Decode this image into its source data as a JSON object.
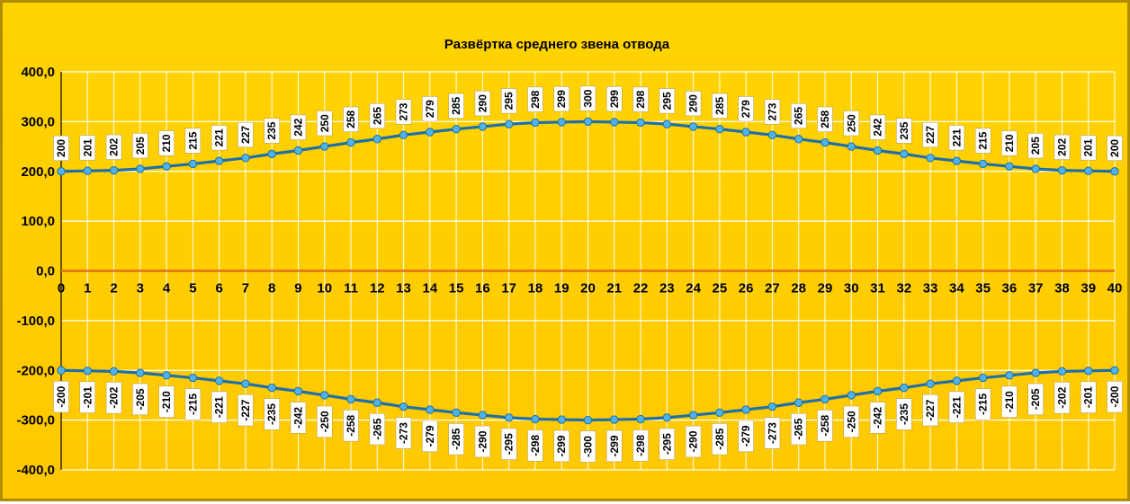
{
  "chart_data": {
    "type": "line",
    "title": "Развёртка среднего звена отвода",
    "xlabel": "",
    "ylabel": "",
    "x": [
      0,
      1,
      2,
      3,
      4,
      5,
      6,
      7,
      8,
      9,
      10,
      11,
      12,
      13,
      14,
      15,
      16,
      17,
      18,
      19,
      20,
      21,
      22,
      23,
      24,
      25,
      26,
      27,
      28,
      29,
      30,
      31,
      32,
      33,
      34,
      35,
      36,
      37,
      38,
      39,
      40
    ],
    "x_tick_labels": [
      "0",
      "1",
      "2",
      "3",
      "4",
      "5",
      "6",
      "7",
      "8",
      "9",
      "10",
      "11",
      "12",
      "13",
      "14",
      "15",
      "16",
      "17",
      "18",
      "19",
      "20",
      "21",
      "22",
      "23",
      "24",
      "25",
      "26",
      "27",
      "28",
      "29",
      "30",
      "31",
      "32",
      "33",
      "34",
      "35",
      "36",
      "37",
      "38",
      "39",
      "40"
    ],
    "ylim": [
      -400,
      400
    ],
    "y_ticks": [
      -400,
      -300,
      -200,
      -100,
      0,
      100,
      200,
      300,
      400
    ],
    "y_tick_labels": [
      "-400,0",
      "-300,0",
      "-200,0",
      "-100,0",
      "0,0",
      "100,0",
      "200,0",
      "300,0",
      "400,0"
    ],
    "grid": true,
    "legend": "none",
    "colors": {
      "series": "#1f6fa8",
      "marker": "#4fb3e8",
      "zero_line": "#e0701a",
      "grid": "#ffffff",
      "background": "#ffcc00"
    },
    "series": [
      {
        "values": [
          200,
          201,
          202,
          205,
          210,
          215,
          221,
          227,
          235,
          242,
          250,
          258,
          265,
          273,
          279,
          285,
          290,
          295,
          298,
          299,
          300,
          299,
          298,
          295,
          290,
          285,
          279,
          273,
          265,
          258,
          250,
          242,
          235,
          227,
          221,
          215,
          210,
          205,
          202,
          201,
          200
        ],
        "data_labels": [
          "200",
          "201",
          "202",
          "205",
          "210",
          "215",
          "221",
          "227",
          "235",
          "242",
          "250",
          "258",
          "265",
          "273",
          "279",
          "285",
          "290",
          "295",
          "298",
          "299",
          "300",
          "299",
          "298",
          "295",
          "290",
          "285",
          "279",
          "273",
          "265",
          "258",
          "250",
          "242",
          "235",
          "227",
          "221",
          "215",
          "210",
          "205",
          "202",
          "201",
          "200"
        ]
      },
      {
        "values": [
          -200,
          -201,
          -202,
          -205,
          -210,
          -215,
          -221,
          -227,
          -235,
          -242,
          -250,
          -258,
          -265,
          -273,
          -279,
          -285,
          -290,
          -295,
          -298,
          -299,
          -300,
          -299,
          -298,
          -295,
          -290,
          -285,
          -279,
          -273,
          -265,
          -258,
          -250,
          -242,
          -235,
          -227,
          -221,
          -215,
          -210,
          -205,
          -202,
          -201,
          -200
        ],
        "data_labels": [
          "-200",
          "-201",
          "-202",
          "-205",
          "-210",
          "-215",
          "-221",
          "-227",
          "-235",
          "-242",
          "-250",
          "-258",
          "-265",
          "-273",
          "-279",
          "-285",
          "-290",
          "-295",
          "-298",
          "-299",
          "-300",
          "-299",
          "-298",
          "-295",
          "-290",
          "-285",
          "-279",
          "-273",
          "-265",
          "-258",
          "-250",
          "-242",
          "-235",
          "-227",
          "-221",
          "-215",
          "-210",
          "-205",
          "-202",
          "-201",
          "-200"
        ]
      }
    ]
  }
}
